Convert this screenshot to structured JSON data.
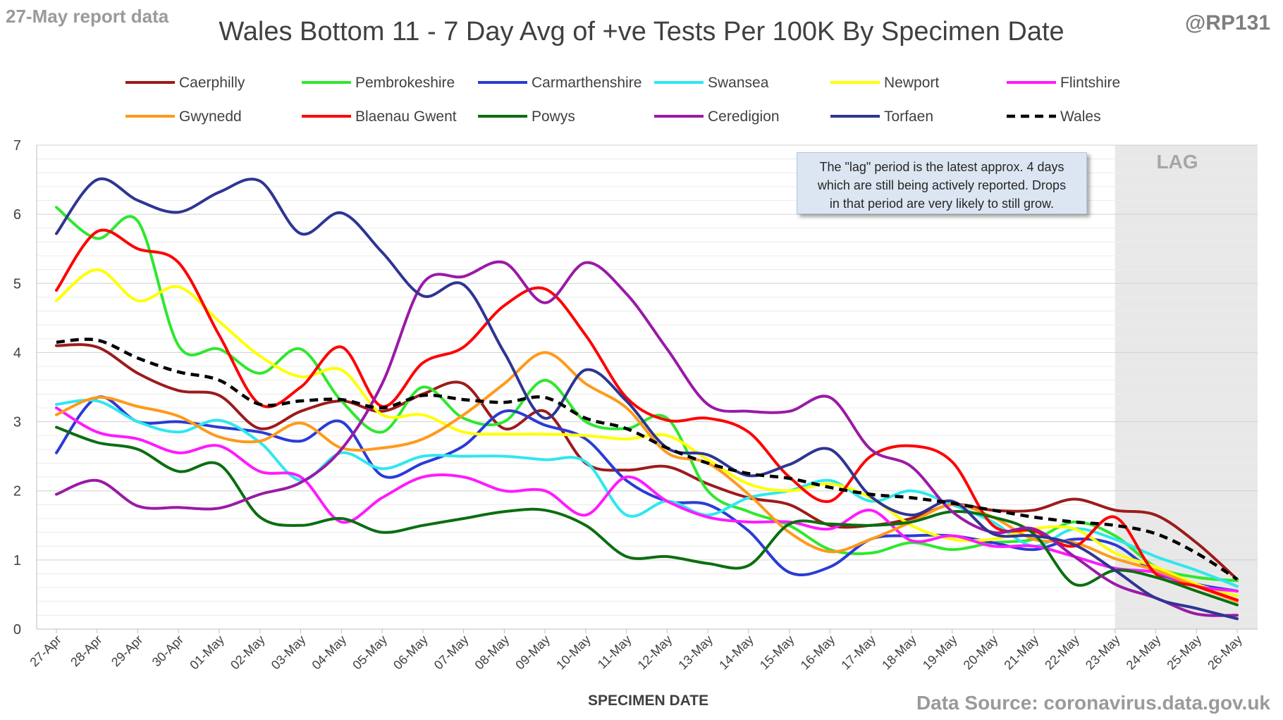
{
  "report_date": "27-May report data",
  "handle": "@RP131",
  "source": "Data Source: coronavirus.data.gov.uk",
  "note": {
    "lines": [
      "The \"lag\" period is the latest approx. 4 days",
      "which are still being actively reported.  Drops",
      "in that period are very likely to still grow."
    ]
  },
  "chart_data": {
    "type": "line",
    "title": "Wales Bottom 11 - 7 Day Avg of +ve Tests Per 100K By Specimen Date",
    "xlabel": "SPECIMEN DATE",
    "ylabel": "",
    "ylim": [
      0,
      7
    ],
    "yticks": [
      0,
      1,
      2,
      3,
      4,
      5,
      6,
      7
    ],
    "grid": true,
    "legend_position": "top",
    "lag_label": "LAG",
    "lag_range": [
      "23-May",
      "26-May"
    ],
    "categories": [
      "27-Apr",
      "28-Apr",
      "29-Apr",
      "30-Apr",
      "01-May",
      "02-May",
      "03-May",
      "04-May",
      "05-May",
      "06-May",
      "07-May",
      "08-May",
      "09-May",
      "10-May",
      "11-May",
      "12-May",
      "13-May",
      "14-May",
      "15-May",
      "16-May",
      "17-May",
      "18-May",
      "19-May",
      "20-May",
      "21-May",
      "22-May",
      "23-May",
      "24-May",
      "25-May",
      "26-May"
    ],
    "series": [
      {
        "name": "Caerphilly",
        "color": "#9c1b1b",
        "dashed": false,
        "values": [
          4.1,
          4.08,
          3.7,
          3.45,
          3.38,
          2.9,
          3.15,
          3.3,
          3.15,
          3.4,
          3.55,
          2.9,
          3.15,
          2.4,
          2.3,
          2.35,
          2.1,
          1.9,
          1.8,
          1.5,
          1.5,
          1.6,
          1.8,
          1.72,
          1.72,
          1.88,
          1.72,
          1.65,
          1.25,
          0.72
        ]
      },
      {
        "name": "Pembrokeshire",
        "color": "#2ee82e",
        "dashed": false,
        "values": [
          6.1,
          5.65,
          5.9,
          4.1,
          4.05,
          3.7,
          4.05,
          3.3,
          2.85,
          3.5,
          3.05,
          3.0,
          3.6,
          3.0,
          2.9,
          3.05,
          2.0,
          1.7,
          1.5,
          1.15,
          1.1,
          1.25,
          1.15,
          1.25,
          1.3,
          1.55,
          1.35,
          0.9,
          0.75,
          0.7
        ]
      },
      {
        "name": "Carmarthenshire",
        "color": "#2a3bd6",
        "dashed": false,
        "values": [
          2.55,
          3.35,
          3.0,
          3.0,
          2.92,
          2.85,
          2.72,
          3.0,
          2.22,
          2.4,
          2.65,
          3.15,
          2.95,
          2.75,
          2.15,
          1.85,
          1.8,
          1.42,
          0.82,
          0.9,
          1.3,
          1.35,
          1.35,
          1.25,
          1.15,
          1.3,
          1.22,
          0.82,
          0.65,
          0.55
        ]
      },
      {
        "name": "Swansea",
        "color": "#2ee8ee",
        "dashed": false,
        "values": [
          3.25,
          3.3,
          3.0,
          2.85,
          3.02,
          2.7,
          2.15,
          2.55,
          2.32,
          2.5,
          2.5,
          2.5,
          2.45,
          2.42,
          1.65,
          1.85,
          1.65,
          1.9,
          2.0,
          2.15,
          1.85,
          2.0,
          1.8,
          1.55,
          1.2,
          1.45,
          1.3,
          1.05,
          0.85,
          0.62
        ]
      },
      {
        "name": "Newport",
        "color": "#ffff00",
        "dashed": false,
        "values": [
          4.75,
          5.2,
          4.75,
          4.95,
          4.45,
          3.95,
          3.65,
          3.75,
          3.1,
          3.1,
          2.85,
          2.82,
          2.82,
          2.8,
          2.75,
          2.8,
          2.45,
          2.1,
          2.0,
          2.1,
          1.9,
          1.5,
          1.3,
          1.3,
          1.45,
          1.45,
          1.1,
          0.9,
          0.65,
          0.48
        ]
      },
      {
        "name": "Flintshire",
        "color": "#ff1aff",
        "dashed": false,
        "values": [
          3.2,
          2.85,
          2.75,
          2.55,
          2.65,
          2.28,
          2.2,
          1.55,
          1.9,
          2.2,
          2.2,
          2.0,
          2.0,
          1.65,
          2.2,
          1.85,
          1.62,
          1.55,
          1.55,
          1.45,
          1.72,
          1.28,
          1.35,
          1.2,
          1.2,
          1.05,
          0.88,
          0.82,
          0.62,
          0.55
        ]
      },
      {
        "name": "Gwynedd",
        "color": "#ff9a1a",
        "dashed": false,
        "values": [
          3.1,
          3.35,
          3.22,
          3.08,
          2.78,
          2.72,
          2.98,
          2.62,
          2.62,
          2.75,
          3.1,
          3.55,
          4.0,
          3.55,
          3.2,
          2.55,
          2.4,
          1.95,
          1.4,
          1.12,
          1.3,
          1.55,
          1.8,
          1.62,
          1.3,
          1.25,
          1.02,
          0.85,
          0.62,
          0.4
        ]
      },
      {
        "name": "Blaenau Gwent",
        "color": "#ff0000",
        "dashed": false,
        "values": [
          4.9,
          5.75,
          5.5,
          5.3,
          4.25,
          3.25,
          3.5,
          4.08,
          3.22,
          3.85,
          4.08,
          4.68,
          4.92,
          4.25,
          3.35,
          3.02,
          3.05,
          2.85,
          2.2,
          1.85,
          2.5,
          2.65,
          2.42,
          1.5,
          1.42,
          1.2,
          1.62,
          0.8,
          0.62,
          0.42
        ]
      },
      {
        "name": "Powys",
        "color": "#0b6e10",
        "dashed": false,
        "values": [
          2.92,
          2.7,
          2.6,
          2.28,
          2.38,
          1.62,
          1.5,
          1.6,
          1.4,
          1.5,
          1.6,
          1.7,
          1.72,
          1.5,
          1.05,
          1.05,
          0.95,
          0.92,
          1.52,
          1.52,
          1.5,
          1.55,
          1.7,
          1.62,
          1.38,
          0.65,
          0.85,
          0.75,
          0.55,
          0.35
        ]
      },
      {
        "name": "Ceredigion",
        "color": "#9a1aa6",
        "dashed": false,
        "values": [
          1.95,
          2.15,
          1.78,
          1.76,
          1.75,
          1.95,
          2.12,
          2.6,
          3.55,
          5.0,
          5.1,
          5.3,
          4.72,
          5.3,
          4.85,
          4.05,
          3.25,
          3.15,
          3.15,
          3.35,
          2.6,
          2.35,
          1.7,
          1.4,
          1.45,
          1.05,
          0.65,
          0.45,
          0.22,
          0.2
        ]
      },
      {
        "name": "Torfaen",
        "color": "#2e3592",
        "dashed": false,
        "values": [
          5.72,
          6.5,
          6.2,
          6.03,
          6.32,
          6.48,
          5.72,
          6.02,
          5.45,
          4.82,
          4.98,
          4.0,
          3.05,
          3.75,
          3.3,
          2.62,
          2.52,
          2.22,
          2.38,
          2.6,
          1.92,
          1.65,
          1.85,
          1.38,
          1.35,
          1.22,
          0.85,
          0.45,
          0.3,
          0.15
        ]
      },
      {
        "name": "Wales",
        "color": "#000000",
        "dashed": true,
        "values": [
          4.15,
          4.18,
          3.92,
          3.72,
          3.6,
          3.25,
          3.3,
          3.32,
          3.2,
          3.38,
          3.32,
          3.28,
          3.35,
          3.05,
          2.9,
          2.62,
          2.4,
          2.25,
          2.18,
          2.05,
          1.95,
          1.9,
          1.82,
          1.72,
          1.62,
          1.55,
          1.5,
          1.38,
          1.1,
          0.72
        ]
      }
    ]
  }
}
